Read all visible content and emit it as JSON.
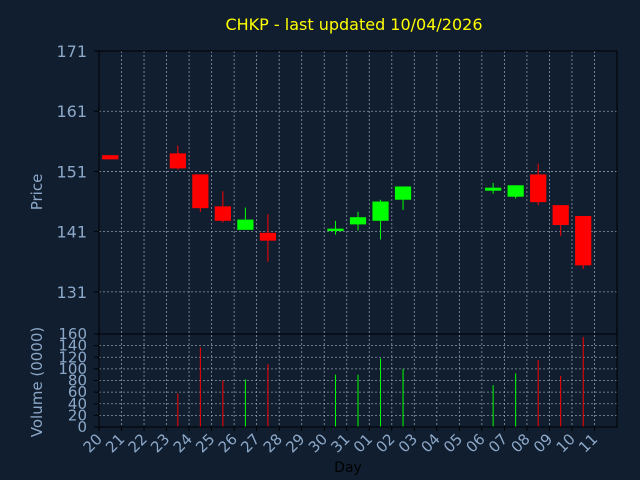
{
  "chart_data": {
    "type": "candlestick",
    "title": "CHKP - last updated 10/04/2026",
    "xlabel": "Day",
    "ylabel_price": "Price",
    "ylabel_volume": "Volume (0000)",
    "x_ticks": [
      "20",
      "21",
      "22",
      "23",
      "24",
      "25",
      "26",
      "27",
      "28",
      "29",
      "30",
      "31",
      "01",
      "02",
      "03",
      "04",
      "05",
      "06",
      "07",
      "08",
      "09",
      "10",
      "11"
    ],
    "price_ylim": [
      124,
      171
    ],
    "price_ticks": [
      171,
      161,
      151,
      141,
      131
    ],
    "volume_ylim": [
      0,
      160
    ],
    "volume_ticks": [
      160,
      140,
      120,
      100,
      80,
      60,
      40,
      20,
      0
    ],
    "grid": true,
    "colors": {
      "up": "#00ff00",
      "down": "#ff0000",
      "background": "#111e2f",
      "title": "#ffff00",
      "axis_text": "#8ca8c8",
      "grid": "#8899aa"
    },
    "candles": [
      {
        "day": "20",
        "open": 153.7,
        "high": 153.7,
        "low": 153.0,
        "close": 153.0,
        "volume": 0
      },
      {
        "day": "23",
        "open": 154.0,
        "high": 155.3,
        "low": 151.3,
        "close": 151.5,
        "volume": 58
      },
      {
        "day": "24",
        "open": 150.5,
        "high": 150.5,
        "low": 144.3,
        "close": 144.9,
        "volume": 137
      },
      {
        "day": "25",
        "open": 145.2,
        "high": 147.7,
        "low": 142.5,
        "close": 142.8,
        "volume": 80
      },
      {
        "day": "26",
        "open": 141.3,
        "high": 145.0,
        "low": 141.3,
        "close": 143.0,
        "volume": 82
      },
      {
        "day": "27",
        "open": 140.8,
        "high": 143.9,
        "low": 136.0,
        "close": 139.5,
        "volume": 108
      },
      {
        "day": "30",
        "open": 141.1,
        "high": 142.8,
        "low": 140.5,
        "close": 141.5,
        "volume": 90
      },
      {
        "day": "31",
        "open": 142.2,
        "high": 144.3,
        "low": 141.2,
        "close": 143.4,
        "volume": 90
      },
      {
        "day": "01",
        "open": 142.8,
        "high": 146.3,
        "low": 139.7,
        "close": 146.0,
        "volume": 118
      },
      {
        "day": "02",
        "open": 146.3,
        "high": 148.5,
        "low": 144.6,
        "close": 148.5,
        "volume": 100
      },
      {
        "day": "06",
        "open": 147.8,
        "high": 149.1,
        "low": 147.3,
        "close": 148.3,
        "volume": 72
      },
      {
        "day": "07",
        "open": 146.8,
        "high": 148.7,
        "low": 146.5,
        "close": 148.7,
        "volume": 92
      },
      {
        "day": "08",
        "open": 150.5,
        "high": 152.3,
        "low": 145.4,
        "close": 145.9,
        "volume": 115
      },
      {
        "day": "09",
        "open": 145.4,
        "high": 145.4,
        "low": 140.3,
        "close": 142.1,
        "volume": 88
      },
      {
        "day": "10",
        "open": 143.6,
        "high": 143.6,
        "low": 134.8,
        "close": 135.4,
        "volume": 155
      }
    ]
  }
}
